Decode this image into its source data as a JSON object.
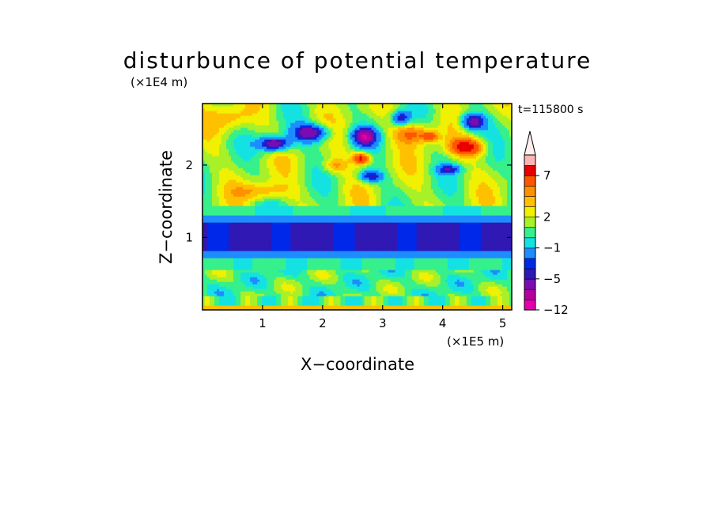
{
  "chart_data": {
    "type": "heatmap",
    "title": "disturbunce of potential temperature",
    "time_label": "t=115800 s",
    "xlabel": "X−coordinate",
    "ylabel": "Z−coordinate",
    "x_unit": "(×1E5 m)",
    "y_unit": "(×1E4 m)",
    "xlim": [
      0,
      5.15
    ],
    "ylim": [
      0,
      2.85
    ],
    "x_ticks": [
      1,
      2,
      3,
      4,
      5
    ],
    "y_ticks": [
      1,
      2
    ],
    "colorbar": {
      "levels": [
        -12,
        -9,
        -7,
        -5,
        -4,
        -3,
        -1,
        0,
        1,
        2,
        3,
        4,
        5,
        7,
        9,
        11
      ],
      "tick_labels": [
        "−12",
        "−5",
        "−1",
        "2",
        "7"
      ],
      "tick_levels": [
        -12,
        -5,
        -1,
        2,
        7
      ],
      "extend": "max",
      "colors": [
        "#e600ad",
        "#b4009c",
        "#7a0cb4",
        "#2f18b4",
        "#0028e8",
        "#1e8cff",
        "#14e2e2",
        "#36f08c",
        "#a8f028",
        "#f0f000",
        "#ffc000",
        "#ff9000",
        "#ff5500",
        "#e80000",
        "#ffb4b4",
        "#fff0ee"
      ]
    },
    "features": [
      {
        "name": "lower stratosphere band",
        "z_range": [
          0.82,
          1.2
        ],
        "value": -4
      },
      {
        "name": "cold cell",
        "x": 1.2,
        "z": 2.3,
        "value": -5
      },
      {
        "name": "cold cell",
        "x": 1.8,
        "z": 2.45,
        "value": -5
      },
      {
        "name": "cold cell",
        "x": 2.7,
        "z": 2.4,
        "value": -5
      },
      {
        "name": "cold cell",
        "x": 3.3,
        "z": 2.65,
        "value": -4
      },
      {
        "name": "cold cell",
        "x": 4.5,
        "z": 2.6,
        "value": -5
      },
      {
        "name": "warm cell",
        "x": 0.5,
        "z": 2.65,
        "value": 3
      },
      {
        "name": "warm cell",
        "x": 2.65,
        "z": 2.1,
        "value": 7
      },
      {
        "name": "warm cell",
        "x": 4.4,
        "z": 2.25,
        "value": 7
      },
      {
        "name": "warm cell",
        "x": 3.5,
        "z": 2.45,
        "value": 5
      }
    ]
  }
}
